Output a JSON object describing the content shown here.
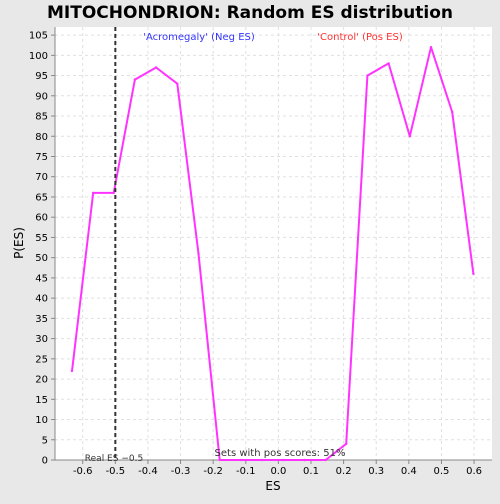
{
  "chart_data": {
    "type": "line",
    "title": "MITOCHONDRION: Random ES distribution",
    "xlabel": "ES",
    "ylabel": "P(ES)",
    "xlim": [
      -0.685,
      0.655
    ],
    "ylim": [
      0,
      107
    ],
    "x_ticks": [
      -0.6,
      -0.5,
      -0.4,
      -0.3,
      -0.2,
      -0.1,
      0.0,
      0.1,
      0.2,
      0.3,
      0.4,
      0.5,
      0.6
    ],
    "x_tick_labels": [
      "-0.6",
      "-0.5",
      "-0.4",
      "-0.3",
      "-0.2",
      "-0.1",
      "0.0",
      "0.1",
      "0.2",
      "0.3",
      "0.4",
      "0.5",
      "0.6"
    ],
    "y_ticks": [
      0,
      5,
      10,
      15,
      20,
      25,
      30,
      35,
      40,
      45,
      50,
      55,
      60,
      65,
      70,
      75,
      80,
      85,
      90,
      95,
      100,
      105
    ],
    "grid": true,
    "line_color": "#ff33ff",
    "series": [
      {
        "points": [
          [
            -0.633,
            22
          ],
          [
            -0.568,
            66
          ],
          [
            -0.505,
            66
          ],
          [
            -0.44,
            94
          ],
          [
            -0.375,
            97
          ],
          [
            -0.31,
            93
          ],
          [
            -0.245,
            51
          ],
          [
            -0.18,
            0
          ],
          [
            -0.115,
            0
          ],
          [
            -0.05,
            0
          ],
          [
            0.015,
            0
          ],
          [
            0.08,
            0
          ],
          [
            0.145,
            0
          ],
          [
            0.208,
            4
          ],
          [
            0.273,
            95
          ],
          [
            0.338,
            98
          ],
          [
            0.403,
            80
          ],
          [
            0.468,
            102
          ],
          [
            0.533,
            86
          ],
          [
            0.598,
            46
          ]
        ]
      }
    ],
    "real_es": {
      "value": -0.5,
      "label": "Real ES −0.5",
      "color": "#333333"
    },
    "annotations": {
      "neg_label": "'Acromegaly' (Neg ES)",
      "neg_color": "#3333ff",
      "pos_label": "'Control' (Pos ES)",
      "pos_color": "#ff3333",
      "pos_scores": "Sets with pos scores: 51%"
    }
  }
}
